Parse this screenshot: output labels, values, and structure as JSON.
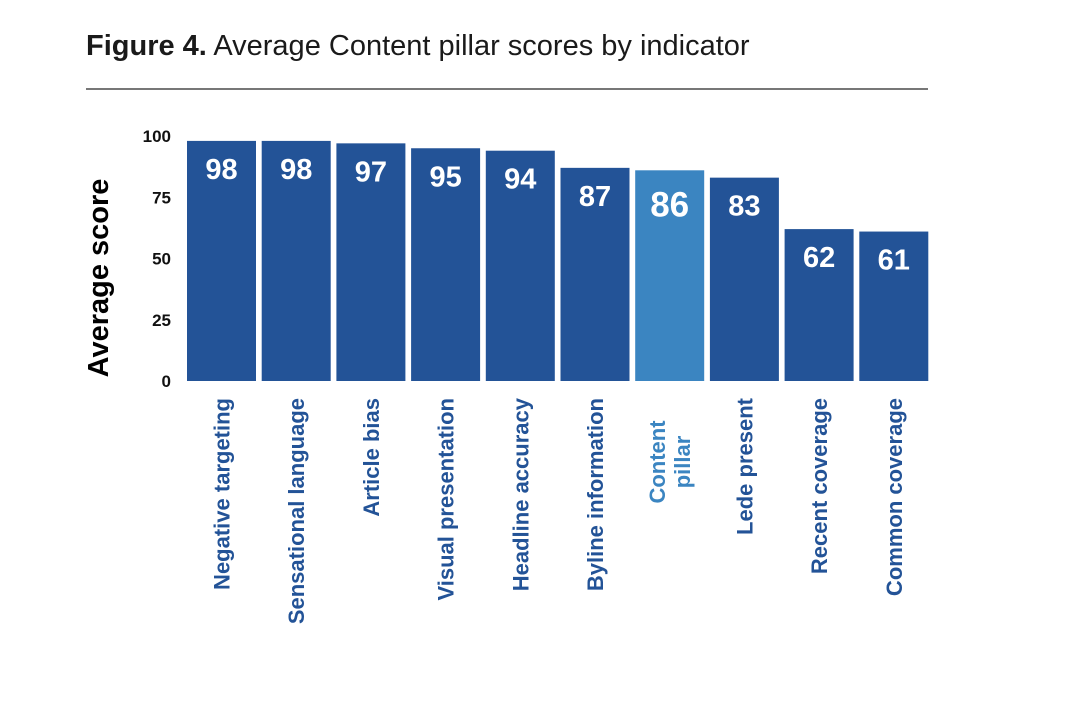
{
  "header": {
    "title_lead": "Figure 4.",
    "title_rest": "Average Content pillar scores by indicator"
  },
  "chart_data": {
    "type": "bar",
    "title": "Figure 4. Average Content pillar scores by indicator",
    "ylabel": "Average score",
    "xlabel": "",
    "ylim": [
      0,
      100
    ],
    "yticks": [
      0,
      25,
      50,
      75,
      100
    ],
    "grid": false,
    "legend": "none",
    "categories": [
      [
        "Negative targeting"
      ],
      [
        "Sensational language"
      ],
      [
        "Article bias"
      ],
      [
        "Visual presentation"
      ],
      [
        "Headline accuracy"
      ],
      [
        "Byline information"
      ],
      [
        "Content",
        "pillar"
      ],
      [
        "Lede present"
      ],
      [
        "Recent coverage"
      ],
      [
        "Common coverage"
      ]
    ],
    "values": [
      98,
      98,
      97,
      95,
      94,
      87,
      86,
      83,
      62,
      61
    ],
    "highlight_index": 6,
    "colors": {
      "bar": "#235397",
      "highlight": "#3b85c1"
    }
  }
}
